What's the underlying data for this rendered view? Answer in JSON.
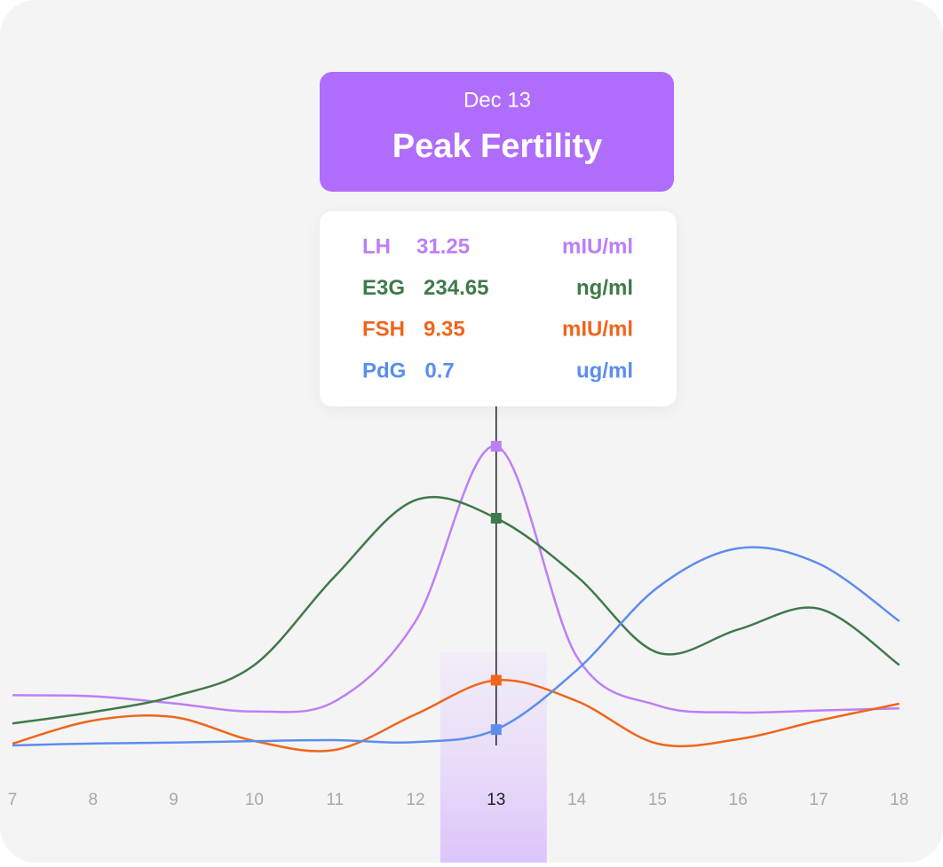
{
  "chart_data": {
    "type": "line",
    "tooltip_date": "Dec 13",
    "tooltip_title": "Peak Fertility",
    "categories": [
      "7",
      "8",
      "9",
      "10",
      "11",
      "12",
      "13",
      "14",
      "15",
      "16",
      "17",
      "18"
    ],
    "selected_index": 6,
    "series": [
      {
        "name": "LH",
        "unit": "mIU/ml",
        "color": "#bd7ef7",
        "ylim": [
          0,
          35
        ],
        "values": [
          6.7,
          6.6,
          5.9,
          5.1,
          6.1,
          14,
          31.25,
          10.5,
          5.7,
          5.0,
          5.2,
          5.4
        ]
      },
      {
        "name": "E3G",
        "unit": "ng/ml",
        "color": "#3f7a4a",
        "ylim": [
          0,
          340
        ],
        "values": [
          38,
          49,
          64,
          94,
          179,
          252,
          234.65,
          179,
          106,
          128,
          148,
          94
        ]
      },
      {
        "name": "FSH",
        "unit": "mIU/ml",
        "color": "#f0651a",
        "ylim": [
          0,
          40
        ],
        "values": [
          2.2,
          4.8,
          5.2,
          2.5,
          1.5,
          5.5,
          9.35,
          7.0,
          2.2,
          2.7,
          4.8,
          6.7
        ]
      },
      {
        "name": "PdG",
        "unit": "ug/ml",
        "color": "#5b8def",
        "ylim": [
          0,
          7.4
        ],
        "values": [
          0.37,
          0.41,
          0.43,
          0.46,
          0.48,
          0.44,
          0.7,
          1.94,
          3.66,
          4.48,
          4.16,
          2.96
        ]
      }
    ]
  }
}
